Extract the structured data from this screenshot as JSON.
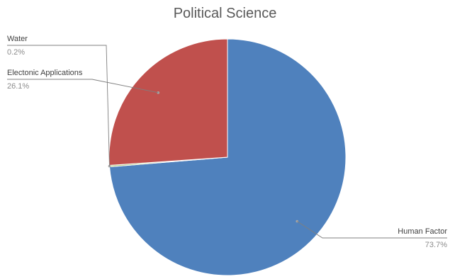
{
  "chart_data": {
    "type": "pie",
    "title": "Political Science",
    "slices": [
      {
        "label": "Human Factor",
        "value": 73.7,
        "display": "73.7%",
        "color": "#4F81BD"
      },
      {
        "label": "Water",
        "value": 0.2,
        "display": "0.2%",
        "color": "#9BBB59"
      },
      {
        "label": "Electonic Applications",
        "value": 26.1,
        "display": "26.1%",
        "color": "#C0504D"
      }
    ],
    "legend": "none",
    "label_style": "outside with leader lines"
  }
}
